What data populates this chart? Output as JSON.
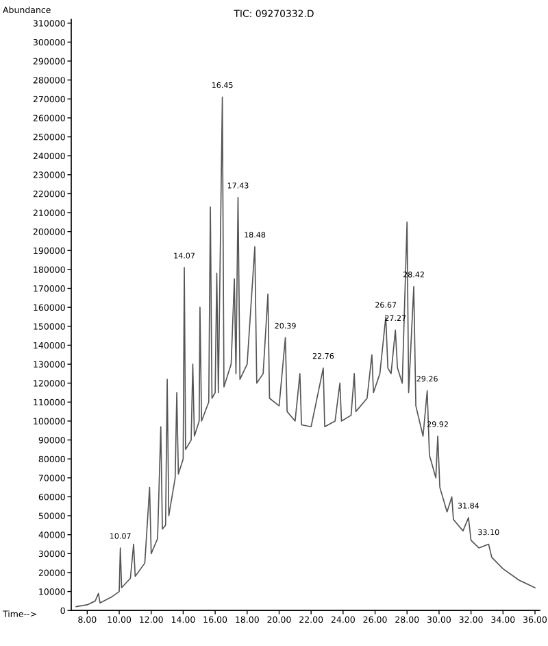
{
  "chart_data": {
    "type": "line",
    "title": "TIC: 09270332.D",
    "xlabel": "Time-->",
    "ylabel": "Abundance",
    "x": [
      7.3,
      8.0,
      8.5,
      8.7,
      8.8,
      9.5,
      10.0,
      10.07,
      10.15,
      10.7,
      10.9,
      11.0,
      11.6,
      11.9,
      12.0,
      12.4,
      12.6,
      12.7,
      12.9,
      13.0,
      13.1,
      13.5,
      13.6,
      13.7,
      14.0,
      14.07,
      14.15,
      14.5,
      14.6,
      14.7,
      15.0,
      15.05,
      15.15,
      15.6,
      15.7,
      15.8,
      16.0,
      16.1,
      16.2,
      16.45,
      16.55,
      17.0,
      17.2,
      17.3,
      17.43,
      17.55,
      18.0,
      18.48,
      18.6,
      19.0,
      19.3,
      19.4,
      20.0,
      20.39,
      20.5,
      21.0,
      21.3,
      21.4,
      22.0,
      22.76,
      22.85,
      23.5,
      23.8,
      23.9,
      24.5,
      24.7,
      24.8,
      25.5,
      25.8,
      25.9,
      26.3,
      26.67,
      26.8,
      27.0,
      27.27,
      27.4,
      27.7,
      28.0,
      28.1,
      28.42,
      28.55,
      29.0,
      29.26,
      29.4,
      29.8,
      29.92,
      30.05,
      30.5,
      30.8,
      30.9,
      31.5,
      31.84,
      32.0,
      32.5,
      33.1,
      33.3,
      34.0,
      35.0,
      36.0
    ],
    "series": [
      {
        "color": "#555555",
        "values": [
          2000,
          3000,
          5000,
          9000,
          4000,
          7000,
          10000,
          33000,
          12000,
          17000,
          35000,
          18000,
          25000,
          65000,
          30000,
          38000,
          97000,
          43000,
          45000,
          122000,
          50000,
          70000,
          115000,
          72000,
          80000,
          181000,
          85000,
          90000,
          130000,
          92000,
          100000,
          160000,
          100000,
          110000,
          213000,
          112000,
          115000,
          178000,
          115000,
          271000,
          118000,
          130000,
          175000,
          125000,
          218000,
          122000,
          130000,
          192000,
          120000,
          125000,
          167000,
          112000,
          108000,
          144000,
          105000,
          100000,
          125000,
          98000,
          97000,
          128000,
          97000,
          100000,
          120000,
          100000,
          103000,
          125000,
          105000,
          112000,
          135000,
          115000,
          125000,
          155000,
          128000,
          125000,
          148000,
          128000,
          120000,
          205000,
          115000,
          171000,
          108000,
          92000,
          116000,
          82000,
          70000,
          92000,
          65000,
          52000,
          60000,
          48000,
          42000,
          49000,
          37000,
          33000,
          35000,
          28000,
          22000,
          16000,
          12000
        ]
      }
    ],
    "xlim": [
      7.0,
      36.3
    ],
    "ylim": [
      0,
      312000
    ],
    "xticks": [
      {
        "value": 8,
        "label": "8.00"
      },
      {
        "value": 10,
        "label": "10.00"
      },
      {
        "value": 12,
        "label": "12.00"
      },
      {
        "value": 14,
        "label": "14.00"
      },
      {
        "value": 16,
        "label": "16.00"
      },
      {
        "value": 18,
        "label": "18.00"
      },
      {
        "value": 20,
        "label": "20.00"
      },
      {
        "value": 22,
        "label": "22.00"
      },
      {
        "value": 24,
        "label": "24.00"
      },
      {
        "value": 26,
        "label": "26.00"
      },
      {
        "value": 28,
        "label": "28.00"
      },
      {
        "value": 30,
        "label": "30.00"
      },
      {
        "value": 32,
        "label": "32.00"
      },
      {
        "value": 34,
        "label": "34.00"
      },
      {
        "value": 36,
        "label": "36.00"
      }
    ],
    "yticks": [
      0,
      10000,
      20000,
      30000,
      40000,
      50000,
      60000,
      70000,
      80000,
      90000,
      100000,
      110000,
      120000,
      130000,
      140000,
      150000,
      160000,
      170000,
      180000,
      190000,
      200000,
      210000,
      220000,
      230000,
      240000,
      250000,
      260000,
      270000,
      280000,
      290000,
      300000,
      310000
    ],
    "grid": false,
    "marker": "none",
    "line_style": "solid",
    "annotations": [
      {
        "text": "10.07",
        "x": 10.07,
        "y": 33000
      },
      {
        "text": "14.07",
        "x": 14.07,
        "y": 181000
      },
      {
        "text": "16.45",
        "x": 16.45,
        "y": 271000
      },
      {
        "text": "17.43",
        "x": 17.43,
        "y": 218000
      },
      {
        "text": "18.48",
        "x": 18.48,
        "y": 192000
      },
      {
        "text": "20.39",
        "x": 20.39,
        "y": 144000
      },
      {
        "text": "22.76",
        "x": 22.76,
        "y": 128000
      },
      {
        "text": "26.67",
        "x": 26.67,
        "y": 155000
      },
      {
        "text": "27.27",
        "x": 27.27,
        "y": 148000
      },
      {
        "text": "28.42",
        "x": 28.42,
        "y": 171000
      },
      {
        "text": "29.26",
        "x": 29.26,
        "y": 116000
      },
      {
        "text": "29.92",
        "x": 29.92,
        "y": 92000
      },
      {
        "text": "31.84",
        "x": 31.84,
        "y": 49000
      },
      {
        "text": "33.10",
        "x": 33.1,
        "y": 35000
      }
    ]
  }
}
